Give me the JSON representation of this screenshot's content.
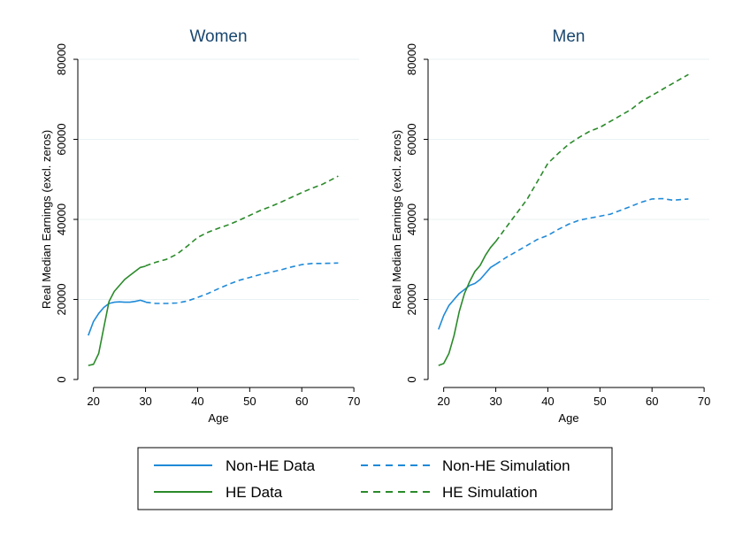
{
  "chart_data": [
    {
      "type": "line",
      "title": "Women",
      "xlabel": "Age",
      "ylabel": "Real Median Earnings (excl. zeros)",
      "xlim": [
        17,
        71
      ],
      "ylim": [
        -2000,
        82000
      ],
      "xticks": [
        20,
        30,
        40,
        50,
        60,
        70
      ],
      "yticks": [
        0,
        20000,
        40000,
        60000,
        80000
      ],
      "grid": "horizontal",
      "series": [
        {
          "name": "Non-HE Data",
          "color": "#1f8ad8",
          "dash": "solid",
          "x": [
            19,
            20,
            21,
            22,
            23,
            24,
            25,
            26,
            27,
            28,
            29,
            30
          ],
          "y": [
            11000,
            14500,
            16500,
            18000,
            19000,
            19300,
            19400,
            19300,
            19300,
            19500,
            19800,
            19400
          ]
        },
        {
          "name": "HE Data",
          "color": "#2a8a2a",
          "dash": "solid",
          "x": [
            19,
            20,
            21,
            22,
            23,
            24,
            25,
            26,
            27,
            28,
            29,
            30
          ],
          "y": [
            3500,
            3800,
            6500,
            13000,
            19500,
            22000,
            23500,
            25000,
            26000,
            27000,
            28000,
            28300
          ]
        },
        {
          "name": "Non-HE Simulation",
          "color": "#1f8ad8",
          "dash": "dashed",
          "x": [
            30,
            32,
            34,
            36,
            38,
            40,
            42,
            44,
            46,
            48,
            50,
            52,
            54,
            56,
            58,
            60,
            62,
            64,
            67
          ],
          "y": [
            19300,
            19000,
            19000,
            19100,
            19600,
            20500,
            21500,
            22700,
            23800,
            24800,
            25500,
            26200,
            26800,
            27400,
            28100,
            28700,
            29000,
            29000,
            29100
          ]
        },
        {
          "name": "HE Simulation",
          "color": "#2a8a2a",
          "dash": "dashed",
          "x": [
            30,
            32,
            34,
            36,
            38,
            40,
            42,
            44,
            46,
            48,
            50,
            52,
            54,
            56,
            58,
            60,
            62,
            64,
            67
          ],
          "y": [
            28400,
            29300,
            30000,
            31300,
            33300,
            35500,
            36800,
            37800,
            38700,
            39800,
            41000,
            42200,
            43200,
            44300,
            45500,
            46700,
            47800,
            48800,
            50800
          ]
        }
      ]
    },
    {
      "type": "line",
      "title": "Men",
      "xlabel": "Age",
      "ylabel": "Real Median Earnings (excl. zeros)",
      "xlim": [
        17,
        71
      ],
      "ylim": [
        -2000,
        82000
      ],
      "xticks": [
        20,
        30,
        40,
        50,
        60,
        70
      ],
      "yticks": [
        0,
        20000,
        40000,
        60000,
        80000
      ],
      "grid": "horizontal",
      "series": [
        {
          "name": "Non-HE Data",
          "color": "#1f8ad8",
          "dash": "solid",
          "x": [
            19,
            20,
            21,
            22,
            23,
            24,
            25,
            26,
            27,
            28,
            29,
            30
          ],
          "y": [
            12500,
            16000,
            18500,
            20000,
            21500,
            22500,
            23500,
            24000,
            25000,
            26500,
            28000,
            28800
          ]
        },
        {
          "name": "HE Data",
          "color": "#2a8a2a",
          "dash": "solid",
          "x": [
            19,
            20,
            21,
            22,
            23,
            24,
            25,
            26,
            27,
            28,
            29,
            30
          ],
          "y": [
            3500,
            4000,
            6500,
            11000,
            17000,
            21500,
            24500,
            27000,
            28500,
            31000,
            33000,
            34500
          ]
        },
        {
          "name": "Non-HE Simulation",
          "color": "#1f8ad8",
          "dash": "dashed",
          "x": [
            30,
            32,
            34,
            36,
            38,
            40,
            42,
            44,
            46,
            48,
            50,
            52,
            54,
            56,
            58,
            60,
            62,
            64,
            67
          ],
          "y": [
            28800,
            30500,
            32000,
            33500,
            35000,
            36000,
            37500,
            38800,
            39800,
            40300,
            40800,
            41300,
            42300,
            43300,
            44300,
            45100,
            45200,
            44800,
            45100
          ]
        },
        {
          "name": "HE Simulation",
          "color": "#2a8a2a",
          "dash": "dashed",
          "x": [
            30,
            32,
            34,
            36,
            38,
            40,
            42,
            44,
            46,
            48,
            50,
            52,
            54,
            56,
            58,
            60,
            62,
            64,
            67
          ],
          "y": [
            34500,
            38000,
            41500,
            45000,
            49500,
            54000,
            56500,
            58800,
            60500,
            62000,
            63000,
            64500,
            66000,
            67500,
            69500,
            71000,
            72500,
            74000,
            76200
          ]
        }
      ]
    }
  ],
  "legend": {
    "placement": "bottom",
    "items": [
      {
        "label": "Non-HE Data",
        "color": "#1f8ad8",
        "dash": "solid"
      },
      {
        "label": "Non-HE Simulation",
        "color": "#1f8ad8",
        "dash": "dashed"
      },
      {
        "label": "HE Data",
        "color": "#2a8a2a",
        "dash": "solid"
      },
      {
        "label": "HE Simulation",
        "color": "#2a8a2a",
        "dash": "dashed"
      }
    ]
  }
}
